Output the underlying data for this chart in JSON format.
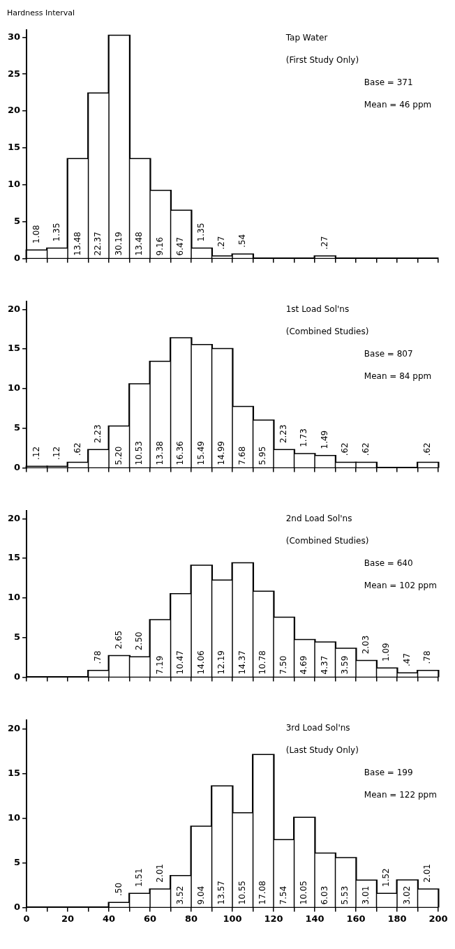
{
  "chart_data": [
    {
      "type": "histogram",
      "title": "Hardness Interval",
      "annotations": [
        "Tap Water",
        "(First Study Only)",
        "Base = 371",
        "Mean = 46 ppm"
      ],
      "bins": [
        0,
        10,
        20,
        30,
        40,
        50,
        60,
        70,
        80,
        90,
        100,
        110,
        120,
        130,
        140,
        150,
        160,
        170,
        180,
        190,
        200
      ],
      "values": [
        1.08,
        1.35,
        13.48,
        22.37,
        30.19,
        13.48,
        9.16,
        6.47,
        1.35,
        0.27,
        0.54,
        0,
        0,
        0,
        0.27,
        0,
        0,
        0,
        0,
        0
      ],
      "value_labels": [
        "1.08",
        "1.35",
        "13.48",
        "22.37",
        "30.19",
        "13.48",
        "9.16",
        "6.47",
        "1.35",
        ".27",
        ".54",
        null,
        null,
        null,
        ".27",
        null,
        null,
        null,
        null,
        null
      ],
      "color": "#ffffff",
      "xlim": [
        0,
        200
      ],
      "xticks": [
        0,
        {
          "value": 10,
          "label": null
        },
        20,
        {
          "value": 30,
          "label": null
        },
        40,
        {
          "value": 50,
          "label": null
        },
        60,
        {
          "value": 70,
          "label": null
        },
        80,
        {
          "value": 90,
          "label": null
        },
        100,
        {
          "value": 110,
          "label": null
        },
        120,
        {
          "value": 130,
          "label": null
        },
        140,
        {
          "value": 150,
          "label": null
        },
        160,
        {
          "value": 170,
          "label": null
        },
        180,
        {
          "value": 190,
          "label": null
        },
        200
      ],
      "ylim": [
        0,
        31
      ],
      "yticks": [
        0,
        5,
        10,
        15,
        20,
        25,
        30
      ],
      "tick_labels": "y",
      "grid": false,
      "legend": false
    },
    {
      "type": "histogram",
      "annotations": [
        "1st Load Sol'ns",
        "(Combined Studies)",
        "Base = 807",
        "Mean = 84 ppm"
      ],
      "bins": [
        0,
        10,
        20,
        30,
        40,
        50,
        60,
        70,
        80,
        90,
        100,
        110,
        120,
        130,
        140,
        150,
        160,
        170,
        180,
        190,
        200
      ],
      "values": [
        0.12,
        0.12,
        0.62,
        2.23,
        5.2,
        10.53,
        13.38,
        16.36,
        15.49,
        14.99,
        7.68,
        5.95,
        2.23,
        1.73,
        1.49,
        0.62,
        0.62,
        0,
        0,
        0.62
      ],
      "value_labels": [
        ".12",
        ".12",
        ".62",
        "2.23",
        "5.20",
        "10.53",
        "13.38",
        "16.36",
        "15.49",
        "14.99",
        "7.68",
        "5.95",
        "2.23",
        "1.73",
        "1.49",
        ".62",
        ".62",
        null,
        null,
        ".62"
      ],
      "color": "#ffffff",
      "xlim": [
        0,
        200
      ],
      "xticks": [
        0,
        {
          "value": 10,
          "label": null
        },
        20,
        {
          "value": 30,
          "label": null
        },
        40,
        {
          "value": 50,
          "label": null
        },
        60,
        {
          "value": 70,
          "label": null
        },
        80,
        {
          "value": 90,
          "label": null
        },
        100,
        {
          "value": 110,
          "label": null
        },
        120,
        {
          "value": 130,
          "label": null
        },
        140,
        {
          "value": 150,
          "label": null
        },
        160,
        {
          "value": 170,
          "label": null
        },
        180,
        {
          "value": 190,
          "label": null
        },
        200
      ],
      "ylim": [
        0,
        21
      ],
      "yticks": [
        0,
        5,
        10,
        15,
        20
      ],
      "tick_labels": "y",
      "grid": false,
      "legend": false
    },
    {
      "type": "histogram",
      "annotations": [
        "2nd Load Sol'ns",
        "(Combined Studies)",
        "Base = 640",
        "Mean = 102 ppm"
      ],
      "bins": [
        0,
        10,
        20,
        30,
        40,
        50,
        60,
        70,
        80,
        90,
        100,
        110,
        120,
        130,
        140,
        150,
        160,
        170,
        180,
        190,
        200
      ],
      "values": [
        0,
        0,
        0,
        0.78,
        2.65,
        2.5,
        7.19,
        10.47,
        14.06,
        12.19,
        14.37,
        10.78,
        7.5,
        4.69,
        4.37,
        3.59,
        2.03,
        1.09,
        0.47,
        0.78
      ],
      "value_labels": [
        null,
        null,
        null,
        ".78",
        "2.65",
        "2.50",
        "7.19",
        "10.47",
        "14.06",
        "12.19",
        "14.37",
        "10.78",
        "7.50",
        "4.69",
        "4.37",
        "3.59",
        "2.03",
        "1.09",
        ".47",
        ".78"
      ],
      "color": "#ffffff",
      "xlim": [
        0,
        200
      ],
      "xticks": [
        0,
        {
          "value": 10,
          "label": null
        },
        20,
        {
          "value": 30,
          "label": null
        },
        40,
        {
          "value": 50,
          "label": null
        },
        60,
        {
          "value": 70,
          "label": null
        },
        80,
        {
          "value": 90,
          "label": null
        },
        100,
        {
          "value": 110,
          "label": null
        },
        120,
        {
          "value": 130,
          "label": null
        },
        140,
        {
          "value": 150,
          "label": null
        },
        160,
        {
          "value": 170,
          "label": null
        },
        180,
        {
          "value": 190,
          "label": null
        },
        200
      ],
      "ylim": [
        0,
        21
      ],
      "yticks": [
        0,
        5,
        10,
        15,
        20
      ],
      "tick_labels": "y",
      "grid": false,
      "legend": false
    },
    {
      "type": "histogram",
      "annotations": [
        "3rd Load Sol'ns",
        "(Last Study Only)",
        "Base = 199",
        "Mean = 122 ppm"
      ],
      "bins": [
        0,
        10,
        20,
        30,
        40,
        50,
        60,
        70,
        80,
        90,
        100,
        110,
        120,
        130,
        140,
        150,
        160,
        170,
        180,
        190,
        200
      ],
      "values": [
        0,
        0,
        0,
        0,
        0.5,
        1.51,
        2.01,
        3.52,
        9.04,
        13.57,
        10.55,
        17.08,
        7.54,
        10.05,
        6.03,
        5.53,
        3.01,
        1.52,
        3.02,
        2.01
      ],
      "value_labels": [
        null,
        null,
        null,
        null,
        ".50",
        "1.51",
        "2.01",
        "3.52",
        "9.04",
        "13.57",
        "10.55",
        "17.08",
        "7.54",
        "10.05",
        "6.03",
        "5.53",
        "3.01",
        "1.52",
        "3.02",
        "2.01"
      ],
      "color": "#ffffff",
      "xlim": [
        0,
        200
      ],
      "xticks": [
        0,
        {
          "value": 10,
          "label": null
        },
        20,
        {
          "value": 30,
          "label": null
        },
        40,
        {
          "value": 50,
          "label": null
        },
        60,
        {
          "value": 70,
          "label": null
        },
        80,
        {
          "value": 90,
          "label": null
        },
        100,
        {
          "value": 110,
          "label": null
        },
        120,
        {
          "value": 130,
          "label": null
        },
        140,
        {
          "value": 150,
          "label": null
        },
        160,
        {
          "value": 170,
          "label": null
        },
        180,
        {
          "value": 190,
          "label": null
        },
        200
      ],
      "ylim": [
        0,
        21
      ],
      "yticks": [
        0,
        5,
        10,
        15,
        20
      ],
      "grid": false,
      "legend": false
    }
  ]
}
